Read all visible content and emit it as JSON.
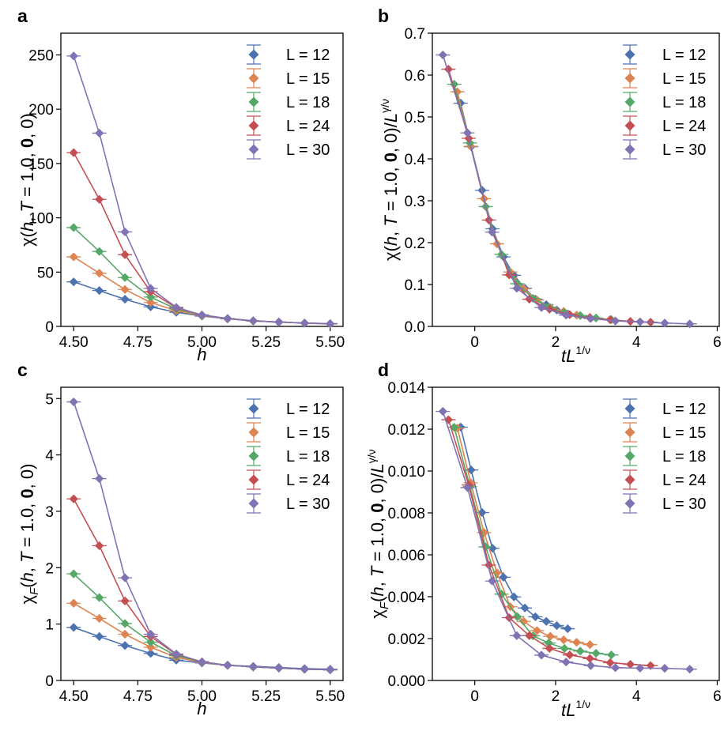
{
  "chart_data": [
    {
      "panel": "a",
      "type": "line",
      "xlabel": [
        "h"
      ],
      "ylabel": [
        "χ(",
        "h",
        ", ",
        "T",
        " = 1.0, ",
        "0",
        ", 0)"
      ],
      "xlim": [
        4.45,
        5.55
      ],
      "ylim": [
        0,
        270
      ],
      "xticks": [
        4.5,
        4.75,
        5.0,
        5.25,
        5.5
      ],
      "xtick_labels": [
        "4.50",
        "4.75",
        "5.00",
        "5.25",
        "5.50"
      ],
      "yticks": [
        0,
        50,
        100,
        150,
        200,
        250
      ],
      "ytick_labels": [
        "0",
        "50",
        "100",
        "150",
        "200",
        "250"
      ],
      "legend_position": "top-right",
      "series": [
        {
          "name": "L = 12",
          "color": "#4c72b0",
          "x": [
            4.5,
            4.6,
            4.7,
            4.8,
            4.9,
            5.0,
            5.1,
            5.2,
            5.3,
            5.4,
            5.5
          ],
          "y": [
            41,
            33,
            25,
            18,
            13,
            9.5,
            7,
            5,
            4,
            3,
            2.3
          ]
        },
        {
          "name": "L = 15",
          "color": "#dd8452",
          "x": [
            4.5,
            4.6,
            4.7,
            4.8,
            4.9,
            5.0,
            5.1,
            5.2,
            5.3,
            5.4,
            5.5
          ],
          "y": [
            64,
            49,
            34,
            22,
            14.5,
            10,
            7,
            5,
            4,
            3,
            2.4
          ]
        },
        {
          "name": "L = 18",
          "color": "#55a868",
          "x": [
            4.5,
            4.6,
            4.7,
            4.8,
            4.9,
            5.0,
            5.1,
            5.2,
            5.3,
            5.4,
            5.5
          ],
          "y": [
            91,
            69,
            45,
            27,
            16,
            10.5,
            7.2,
            5.1,
            4,
            3.1,
            2.5
          ]
        },
        {
          "name": "L = 24",
          "color": "#c44e52",
          "x": [
            4.5,
            4.6,
            4.7,
            4.8,
            4.9,
            5.0,
            5.1,
            5.2,
            5.3,
            5.4,
            5.5
          ],
          "y": [
            160,
            117,
            66,
            32,
            17,
            10.5,
            7.2,
            5.1,
            4,
            3.1,
            2.5
          ]
        },
        {
          "name": "L = 30",
          "color": "#8172b3",
          "x": [
            4.5,
            4.6,
            4.7,
            4.8,
            4.9,
            5.0,
            5.1,
            5.2,
            5.3,
            5.4,
            5.5
          ],
          "y": [
            249,
            178,
            87,
            35,
            17.5,
            10.5,
            7.3,
            5.2,
            4,
            3.1,
            2.5
          ]
        }
      ]
    },
    {
      "panel": "b",
      "type": "line",
      "xlabel": [
        "t",
        "L",
        "1/ν"
      ],
      "ylabel": [
        "χ(",
        "h",
        ", ",
        "T",
        " = 1.0, ",
        "0",
        ", 0)/",
        "L",
        "γ/ν"
      ],
      "xlim": [
        -1.05,
        6.05
      ],
      "ylim": [
        0,
        0.7
      ],
      "xticks": [
        0,
        2,
        4,
        6
      ],
      "xtick_labels": [
        "0",
        "2",
        "4",
        "6"
      ],
      "yticks": [
        0,
        0.1,
        0.2,
        0.3,
        0.4,
        0.5,
        0.6,
        0.7
      ],
      "ytick_labels": [
        "0.0",
        "0.1",
        "0.2",
        "0.3",
        "0.4",
        "0.5",
        "0.6",
        "0.7"
      ],
      "legend_position": "top-right",
      "series": [
        {
          "name": "L = 12",
          "color": "#4c72b0",
          "x": [
            -0.35,
            -0.09,
            0.18,
            0.44,
            0.71,
            0.97,
            1.24,
            1.5,
            1.77,
            2.03,
            2.3
          ],
          "y": [
            0.533,
            0.429,
            0.325,
            0.233,
            0.166,
            0.122,
            0.091,
            0.065,
            0.052,
            0.039,
            0.03
          ]
        },
        {
          "name": "L = 15",
          "color": "#dd8452",
          "x": [
            -0.43,
            -0.1,
            0.23,
            0.55,
            0.88,
            1.21,
            1.54,
            1.87,
            2.2,
            2.52,
            2.85
          ],
          "y": [
            0.56,
            0.43,
            0.305,
            0.197,
            0.13,
            0.09,
            0.063,
            0.045,
            0.036,
            0.027,
            0.022
          ]
        },
        {
          "name": "L = 18",
          "color": "#55a868",
          "x": [
            -0.51,
            -0.12,
            0.27,
            0.66,
            1.05,
            1.44,
            1.83,
            2.22,
            2.61,
            3.0,
            3.38
          ],
          "y": [
            0.578,
            0.438,
            0.286,
            0.172,
            0.102,
            0.067,
            0.046,
            0.033,
            0.026,
            0.02,
            0.016
          ]
        },
        {
          "name": "L = 24",
          "color": "#c44e52",
          "x": [
            -0.65,
            -0.15,
            0.35,
            0.85,
            1.35,
            1.85,
            2.35,
            2.85,
            3.35,
            3.85,
            4.35
          ],
          "y": [
            0.614,
            0.449,
            0.254,
            0.123,
            0.065,
            0.041,
            0.028,
            0.02,
            0.016,
            0.012,
            0.01
          ]
        },
        {
          "name": "L = 30",
          "color": "#8172b3",
          "x": [
            -0.79,
            -0.18,
            0.43,
            1.04,
            1.65,
            2.26,
            2.87,
            3.48,
            4.09,
            4.7,
            5.32
          ],
          "y": [
            0.648,
            0.462,
            0.225,
            0.091,
            0.045,
            0.027,
            0.019,
            0.013,
            0.011,
            0.008,
            0.006
          ]
        }
      ]
    },
    {
      "panel": "c",
      "type": "line",
      "xlabel": [
        "h"
      ],
      "ylabel": [
        "χ",
        "F",
        "(",
        "h",
        ", ",
        "T",
        " = 1.0, ",
        "0",
        ", 0)"
      ],
      "xlim": [
        4.45,
        5.55
      ],
      "ylim": [
        0,
        5.2
      ],
      "xticks": [
        4.5,
        4.75,
        5.0,
        5.25,
        5.5
      ],
      "xtick_labels": [
        "4.50",
        "4.75",
        "5.00",
        "5.25",
        "5.50"
      ],
      "yticks": [
        0,
        1,
        2,
        3,
        4,
        5
      ],
      "ytick_labels": [
        "0",
        "1",
        "2",
        "3",
        "4",
        "5"
      ],
      "legend_position": "top-right",
      "series": [
        {
          "name": "L = 12",
          "color": "#4c72b0",
          "x": [
            4.5,
            4.6,
            4.7,
            4.8,
            4.9,
            5.0,
            5.1,
            5.2,
            5.3,
            5.4,
            5.5
          ],
          "y": [
            0.94,
            0.78,
            0.62,
            0.48,
            0.36,
            0.31,
            0.27,
            0.25,
            0.23,
            0.21,
            0.2
          ]
        },
        {
          "name": "L = 15",
          "color": "#dd8452",
          "x": [
            4.5,
            4.6,
            4.7,
            4.8,
            4.9,
            5.0,
            5.1,
            5.2,
            5.3,
            5.4,
            5.5
          ],
          "y": [
            1.37,
            1.1,
            0.82,
            0.59,
            0.41,
            0.32,
            0.27,
            0.24,
            0.22,
            0.2,
            0.19
          ]
        },
        {
          "name": "L = 18",
          "color": "#55a868",
          "x": [
            4.5,
            4.6,
            4.7,
            4.8,
            4.9,
            5.0,
            5.1,
            5.2,
            5.3,
            5.4,
            5.5
          ],
          "y": [
            1.89,
            1.47,
            1.01,
            0.68,
            0.44,
            0.33,
            0.27,
            0.24,
            0.22,
            0.2,
            0.19
          ]
        },
        {
          "name": "L = 24",
          "color": "#c44e52",
          "x": [
            4.5,
            4.6,
            4.7,
            4.8,
            4.9,
            5.0,
            5.1,
            5.2,
            5.3,
            5.4,
            5.5
          ],
          "y": [
            3.22,
            2.39,
            1.41,
            0.78,
            0.46,
            0.33,
            0.27,
            0.24,
            0.22,
            0.2,
            0.19
          ]
        },
        {
          "name": "L = 30",
          "color": "#8172b3",
          "x": [
            4.5,
            4.6,
            4.7,
            4.8,
            4.9,
            5.0,
            5.1,
            5.2,
            5.3,
            5.4,
            5.5
          ],
          "y": [
            4.94,
            3.58,
            1.82,
            0.82,
            0.47,
            0.33,
            0.27,
            0.24,
            0.22,
            0.2,
            0.19
          ]
        }
      ]
    },
    {
      "panel": "d",
      "type": "line",
      "xlabel": [
        "t",
        "L",
        "1/ν"
      ],
      "ylabel": [
        "χ",
        "F",
        "(",
        "h",
        ", ",
        "T",
        " = 1.0, ",
        "0",
        ", 0)/",
        "L",
        "γ/ν"
      ],
      "xlim": [
        -1.05,
        6.05
      ],
      "ylim": [
        0,
        0.014
      ],
      "xticks": [
        0,
        2,
        4,
        6
      ],
      "xtick_labels": [
        "0",
        "2",
        "4",
        "6"
      ],
      "yticks": [
        0,
        0.002,
        0.004,
        0.006,
        0.008,
        0.01,
        0.012,
        0.014
      ],
      "ytick_labels": [
        "0.000",
        "0.002",
        "0.004",
        "0.006",
        "0.008",
        "0.010",
        "0.012",
        "0.014"
      ],
      "legend_position": "top-right",
      "series": [
        {
          "name": "L = 12",
          "color": "#4c72b0",
          "x": [
            -0.35,
            -0.09,
            0.18,
            0.44,
            0.71,
            0.97,
            1.24,
            1.5,
            1.77,
            2.03,
            2.3
          ],
          "y": [
            0.0121,
            0.01005,
            0.00802,
            0.00631,
            0.00493,
            0.00399,
            0.00346,
            0.00304,
            0.00282,
            0.00262,
            0.00247
          ]
        },
        {
          "name": "L = 15",
          "color": "#dd8452",
          "x": [
            -0.43,
            -0.1,
            0.23,
            0.55,
            0.88,
            1.21,
            1.54,
            1.87,
            2.2,
            2.52,
            2.85
          ],
          "y": [
            0.01205,
            0.00944,
            0.00706,
            0.00514,
            0.00352,
            0.00282,
            0.00238,
            0.00211,
            0.00194,
            0.00182,
            0.00171
          ]
        },
        {
          "name": "L = 18",
          "color": "#55a868",
          "x": [
            -0.51,
            -0.12,
            0.27,
            0.66,
            1.05,
            1.44,
            1.83,
            2.22,
            2.61,
            3.0,
            3.38
          ],
          "y": [
            0.01209,
            0.00926,
            0.00638,
            0.00412,
            0.00305,
            0.00213,
            0.00179,
            0.00153,
            0.0014,
            0.0013,
            0.00122
          ]
        },
        {
          "name": "L = 24",
          "color": "#c44e52",
          "x": [
            -0.65,
            -0.15,
            0.35,
            0.85,
            1.35,
            1.85,
            2.35,
            2.85,
            3.35,
            3.85,
            4.35
          ],
          "y": [
            0.01245,
            0.00933,
            0.00551,
            0.003,
            0.00214,
            0.00153,
            0.00122,
            0.00105,
            0.00085,
            0.00077,
            0.00071
          ]
        },
        {
          "name": "L = 30",
          "color": "#8172b3",
          "x": [
            -0.79,
            -0.18,
            0.43,
            1.04,
            1.65,
            2.26,
            2.87,
            3.48,
            4.09,
            4.7,
            5.32
          ],
          "y": [
            0.01285,
            0.00921,
            0.00475,
            0.00214,
            0.00121,
            0.00088,
            0.00071,
            0.00061,
            0.00059,
            0.00058,
            0.00054
          ]
        }
      ]
    }
  ]
}
